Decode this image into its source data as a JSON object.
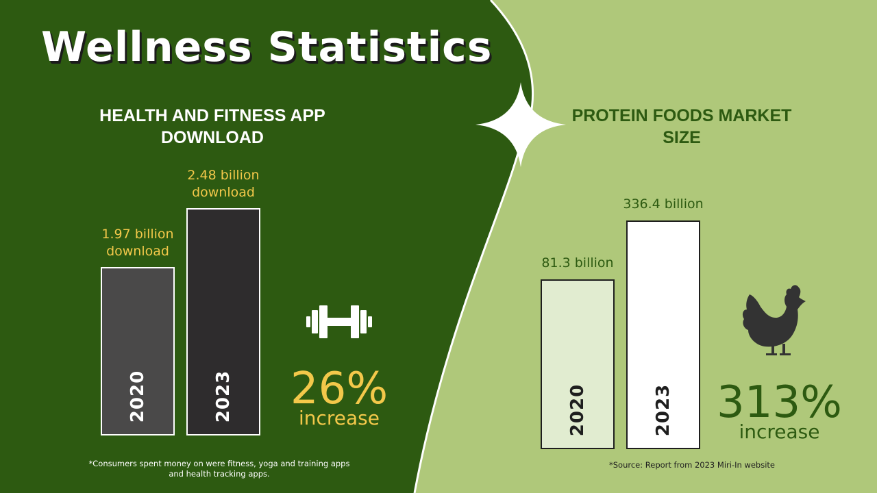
{
  "title": "Wellness Statistics",
  "colors": {
    "dark_green": "#2d5a11",
    "light_green": "#afc87a",
    "yellow": "#f3c84a",
    "bar_2020_left": "#4a4949",
    "bar_2023_left": "#2e2c2d",
    "bar_2020_right": "#e1ecd0",
    "bar_2023_right": "#ffffff",
    "icon_dark": "#333333"
  },
  "icons": {
    "left": "dumbbell-icon",
    "right": "chicken-icon",
    "divider": "sparkle-icon"
  },
  "chart_data": [
    {
      "type": "bar",
      "title": "HEALTH AND FITNESS APP DOWNLOAD",
      "categories": [
        "2020",
        "2023"
      ],
      "values": [
        1.97,
        2.48
      ],
      "units": "billion download",
      "value_labels": [
        "1.97 billion download",
        "2.48 billion download"
      ],
      "increase": "26%",
      "increase_label": "increase",
      "note": "*Consumers spent money on were fitness, yoga and training apps and health tracking apps."
    },
    {
      "type": "bar",
      "title": "PROTEIN FOODS MARKET SIZE",
      "categories": [
        "2020",
        "2023"
      ],
      "values": [
        81.3,
        336.4
      ],
      "units": "billion",
      "value_labels": [
        "81.3 billion",
        "336.4 billion"
      ],
      "increase": "313%",
      "increase_label": "increase",
      "note": "*Source: Report from 2023 Miri-In website"
    }
  ]
}
